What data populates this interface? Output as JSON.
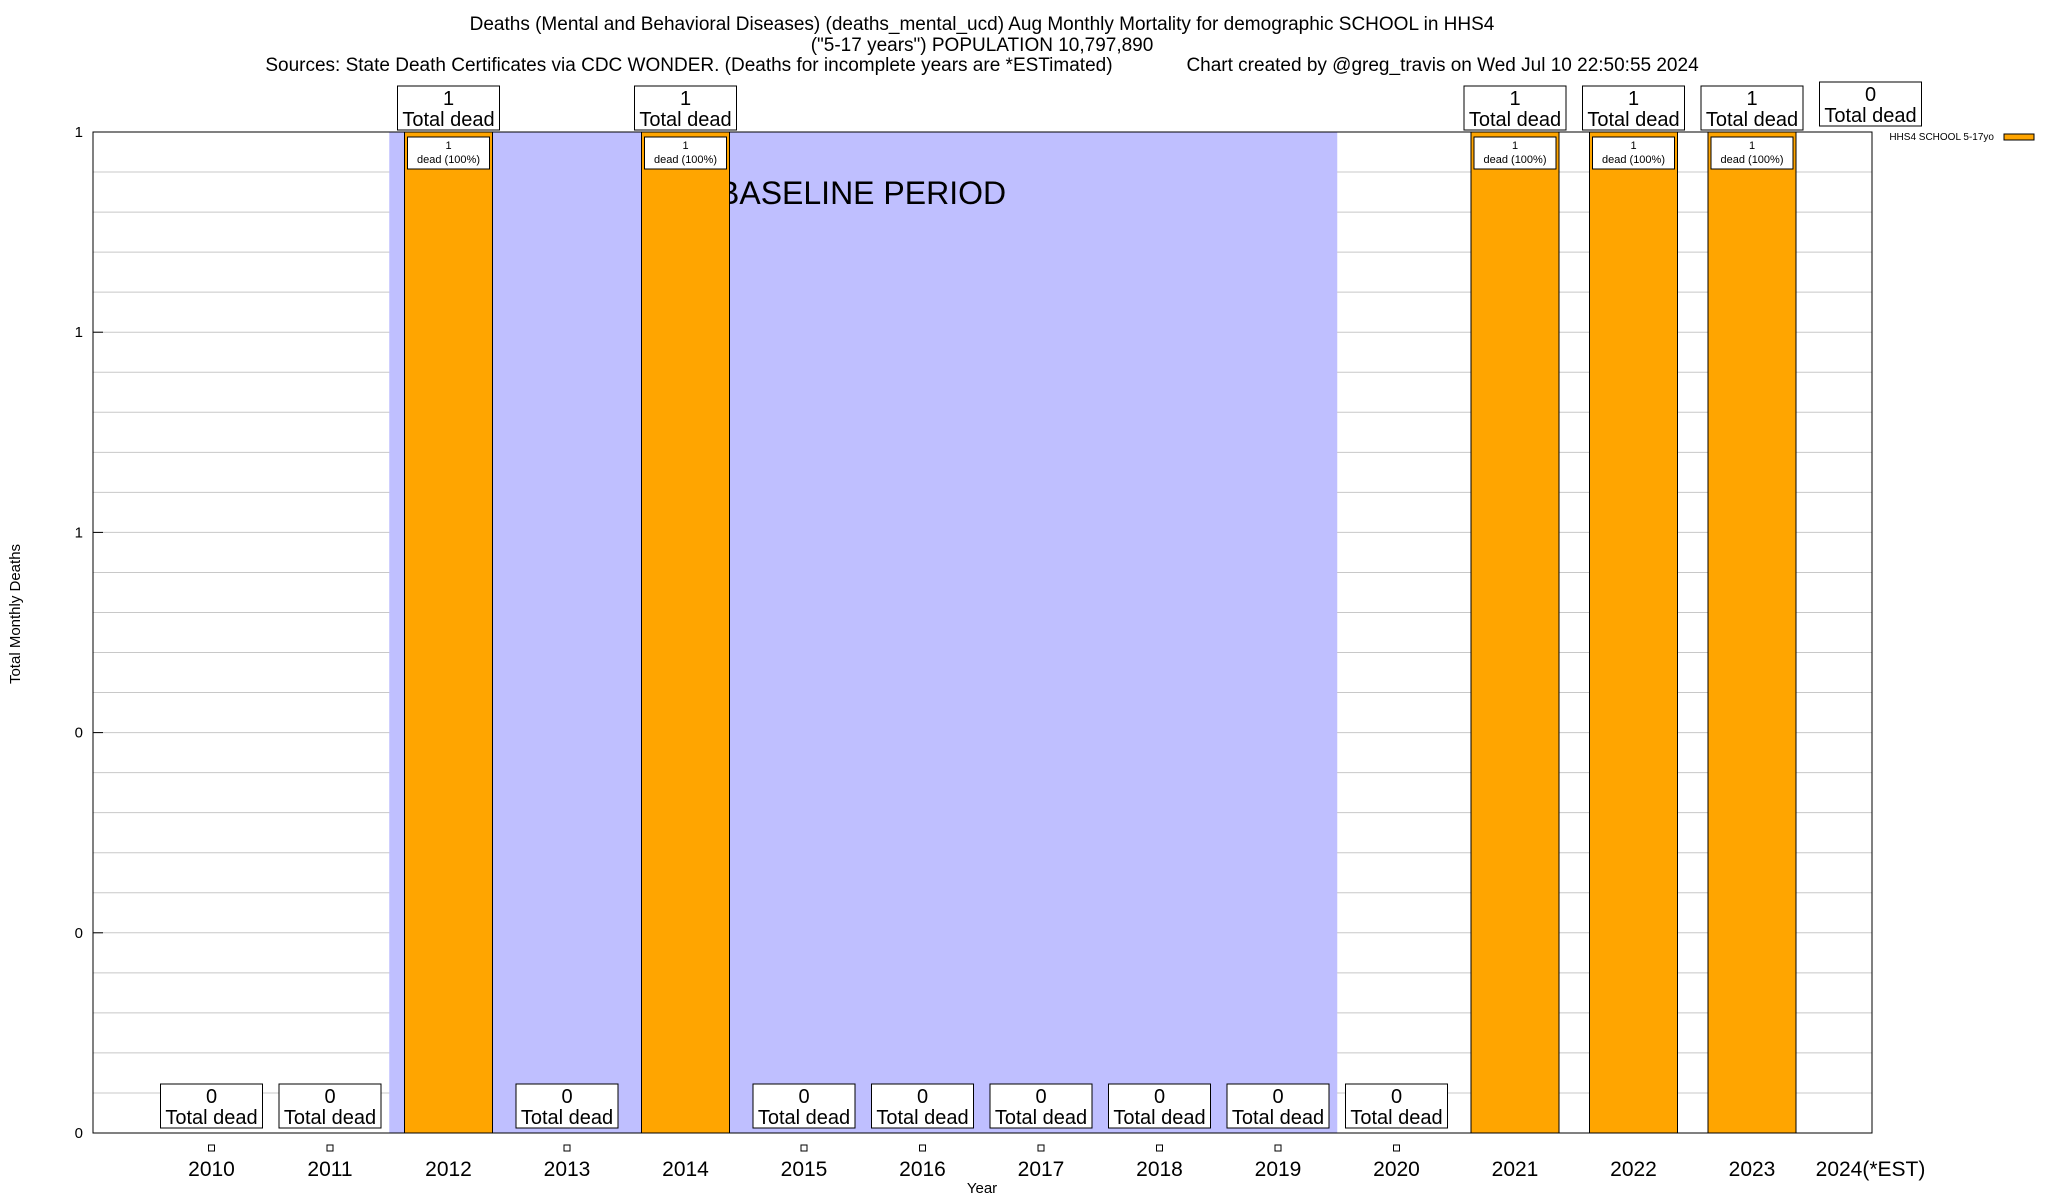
{
  "chart_data": {
    "type": "bar",
    "title_lines": [
      "Deaths (Mental and Behavioral Diseases) (deaths_mental_ucd) Aug Monthly Mortality for demographic SCHOOL in HHS4",
      "(\"5-17 years\") POPULATION 10,797,890",
      "Sources: State Death Certificates via CDC WONDER. (Deaths for incomplete years are *ESTimated)              Chart created by @greg_travis on Wed Jul 10 22:50:55 2024"
    ],
    "xlabel": "Year",
    "ylabel": "Total Monthly Deaths",
    "categories": [
      "2010",
      "2011",
      "2012",
      "2013",
      "2014",
      "2015",
      "2016",
      "2017",
      "2018",
      "2019",
      "2020",
      "2021",
      "2022",
      "2023",
      "2024(*EST)"
    ],
    "series": [
      {
        "name": "HHS4 SCHOOL 5-17yo",
        "color": "#FFA500",
        "values": [
          0,
          0,
          1,
          0,
          1,
          0,
          0,
          0,
          0,
          0,
          0,
          1,
          1,
          1,
          0
        ]
      }
    ],
    "ylim": [
      0,
      1
    ],
    "y_tick_labels": [
      "0",
      "0",
      "0",
      "1",
      "1",
      "1"
    ],
    "total_labels": [
      "0",
      "0",
      "1",
      "0",
      "1",
      "0",
      "0",
      "0",
      "0",
      "0",
      "0",
      "1",
      "1",
      "1",
      "0"
    ],
    "total_label_suffix": "Total dead",
    "bar_labels": [
      "",
      "",
      "1",
      "",
      "1",
      "",
      "",
      "",
      "",
      "",
      "",
      "1",
      "1",
      "1",
      ""
    ],
    "bar_label_suffix": "dead (100%)",
    "baseline": {
      "label": "BASELINE PERIOD",
      "start": "2012",
      "end": "2019",
      "color": "#BFBFFF"
    },
    "bar_color": "#FFA500",
    "legend_position": "top-right",
    "grid": true
  }
}
